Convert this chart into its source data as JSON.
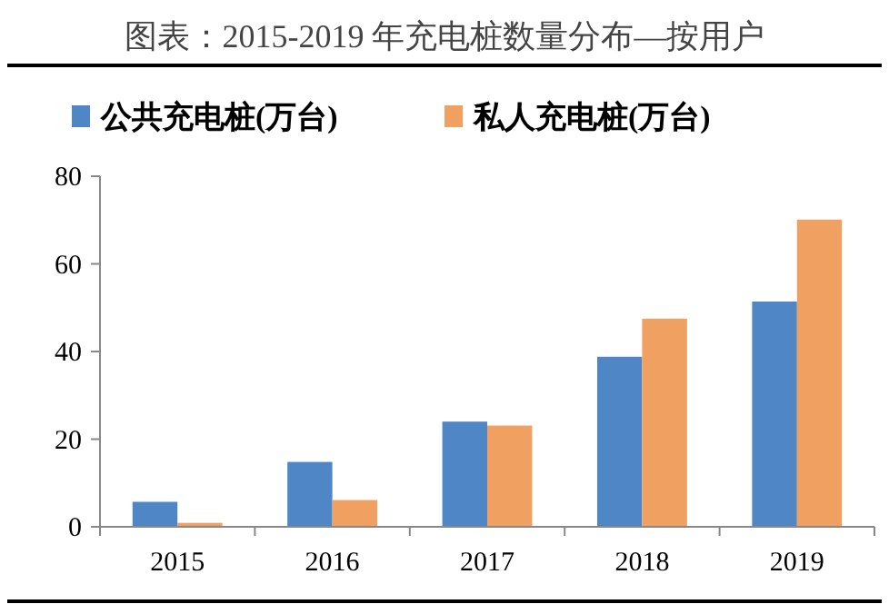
{
  "chart_data": {
    "type": "bar",
    "title": "图表：2015-2019 年充电桩数量分布—按用户",
    "categories": [
      "2015",
      "2016",
      "2017",
      "2018",
      "2019"
    ],
    "series": [
      {
        "name": "公共充电桩(万台)",
        "color": "#4f86c6",
        "values": [
          5.7,
          14.8,
          24.0,
          38.8,
          51.4
        ]
      },
      {
        "name": "私人充电桩(万台)",
        "color": "#f0a060",
        "values": [
          0.9,
          6.1,
          23.1,
          47.5,
          70.1
        ]
      }
    ],
    "ylim": [
      0,
      80
    ],
    "yticks": [
      0,
      20,
      40,
      60,
      80
    ],
    "grid": false,
    "legend": "top"
  }
}
